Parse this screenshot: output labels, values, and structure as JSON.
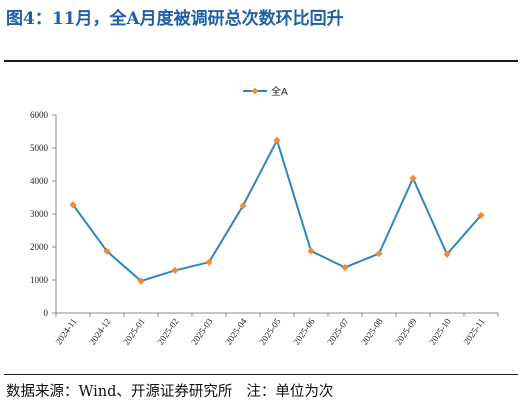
{
  "figure": {
    "title": "图4：11月，全A月度被调研总次数环比回升",
    "source_label": "数据来源：",
    "source_text": "Wind、开源证券研究所",
    "note_label": "注：",
    "note_text": "单位为次"
  },
  "colors": {
    "title": "#1f5fa8",
    "series_line": "#2e86c1",
    "series_marker": "#f28e2b",
    "axis": "#888888"
  },
  "chart_data": {
    "type": "line",
    "title": "",
    "xlabel": "",
    "ylabel": "",
    "categories": [
      "2024-11",
      "2024-12",
      "2025-01",
      "2025-02",
      "2025-03",
      "2025-04",
      "2025-05",
      "2025-06",
      "2025-07",
      "2025-08",
      "2025-09",
      "2025-10",
      "2025-11"
    ],
    "series": [
      {
        "name": "全A",
        "values": [
          3280,
          1870,
          970,
          1290,
          1540,
          3250,
          5230,
          1880,
          1380,
          1800,
          4080,
          1780,
          2960
        ]
      }
    ],
    "ylim": [
      0,
      6000
    ],
    "yticks": [
      0,
      1000,
      2000,
      3000,
      4000,
      5000,
      6000
    ],
    "grid": false,
    "legend_position": "top-center",
    "marker": "diamond"
  }
}
